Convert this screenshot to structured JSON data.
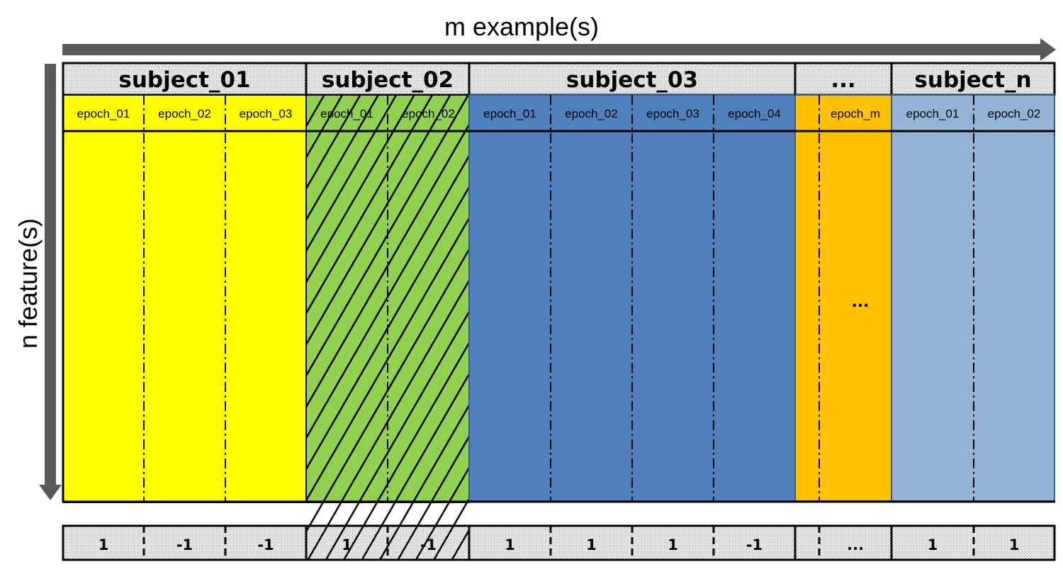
{
  "axes": {
    "x_title": "m example(s)",
    "y_title": "n feature(s)"
  },
  "subjects": [
    {
      "name": "subject_01",
      "fill": "#ffff00",
      "epochs": [
        "epoch_01",
        "epoch_02",
        "epoch_03"
      ],
      "labels": [
        "1",
        "-1",
        "-1"
      ],
      "hatched": false
    },
    {
      "name": "subject_02",
      "fill": "#92d050",
      "epochs": [
        "epoch_01",
        "epoch_02"
      ],
      "labels": [
        "1",
        "-1"
      ],
      "hatched": true
    },
    {
      "name": "subject_03",
      "fill": "#4f81bd",
      "epochs": [
        "epoch_01",
        "epoch_02",
        "epoch_03",
        "epoch_04"
      ],
      "labels": [
        "1",
        "1",
        "1",
        "-1"
      ],
      "hatched": false
    },
    {
      "name": "...",
      "fill": "#ffc000",
      "epochs": [
        "",
        "epoch_m"
      ],
      "labels": [
        "",
        "..."
      ],
      "body_text": "...",
      "hatched": false
    },
    {
      "name": "subject_n",
      "fill": "#95b3d7",
      "epochs": [
        "epoch_01",
        "epoch_02"
      ],
      "labels": [
        "1",
        "1"
      ],
      "hatched": false
    }
  ],
  "colors": {
    "arrow": "#595959",
    "header_fill": "#e8e8e8",
    "border": "#000000"
  }
}
